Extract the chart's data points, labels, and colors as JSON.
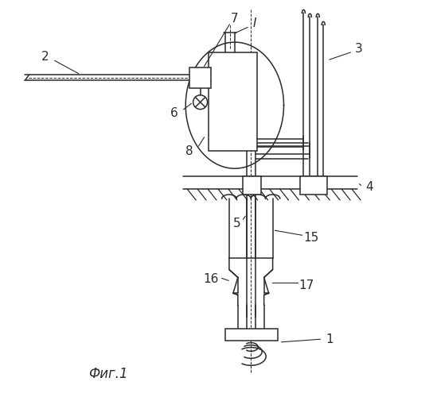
{
  "bg_color": "#ffffff",
  "line_color": "#2a2a2a",
  "caption": "Фиг.1",
  "lw": 1.1
}
